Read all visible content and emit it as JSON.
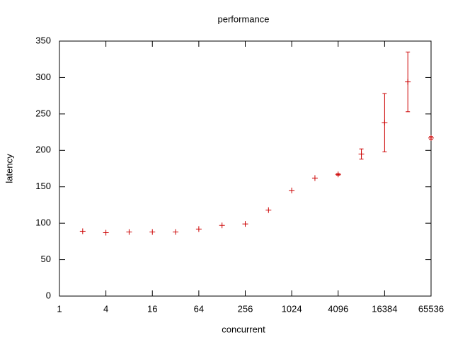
{
  "chart_data": {
    "type": "errorbar",
    "title": "performance",
    "x_label": "concurrent",
    "y_label": "latency",
    "x": [
      2,
      4,
      8,
      16,
      32,
      64,
      128,
      256,
      512,
      1024,
      2048,
      4096,
      8192,
      16384,
      32768,
      65536
    ],
    "values": [
      89,
      87,
      88,
      88,
      88,
      92,
      97,
      99,
      118,
      145,
      162,
      167,
      195,
      238,
      294,
      217
    ],
    "errors": [
      0,
      0,
      0,
      0,
      0,
      0,
      0,
      0,
      0,
      0,
      0,
      1,
      7,
      40,
      41,
      2
    ],
    "color": "#cc0000",
    "x_log_base": 2,
    "xlim": [
      1,
      65536
    ],
    "xticks": [
      1,
      4,
      16,
      64,
      256,
      1024,
      4096,
      16384,
      65536
    ],
    "ylim": [
      0,
      350
    ],
    "yticks": [
      0,
      50,
      100,
      150,
      200,
      250,
      300,
      350
    ]
  }
}
